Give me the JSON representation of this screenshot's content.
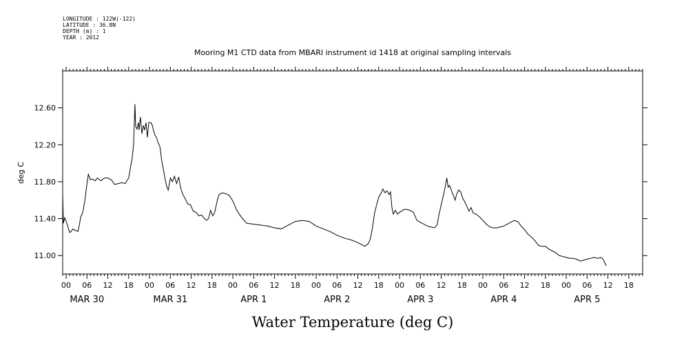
{
  "header": {
    "longitude": "LONGITUDE : 122W(-122)",
    "latitude": "LATITUDE : 36.8N",
    "depth": "DEPTH (m) : 1",
    "year": "YEAR : 2012",
    "title": "Mooring M1 CTD data from MBARI instrument id 1418 at original sampling intervals"
  },
  "chart_data": {
    "type": "line",
    "title": "Mooring M1 CTD data from MBARI instrument id 1418 at original sampling intervals",
    "xlabel": "Water Temperature (deg C)",
    "ylabel": "deg C",
    "ylim": [
      10.8,
      13.0
    ],
    "y_ticks": [
      "11.00",
      "11.40",
      "11.80",
      "12.20",
      "12.60"
    ],
    "x_unit": "hours since 2012-03-30 00:00",
    "xlim": [
      -1,
      166
    ],
    "x_hour_ticks": [
      "00",
      "06",
      "12",
      "18",
      "00",
      "06",
      "12",
      "18",
      "00",
      "06",
      "12",
      "18",
      "00",
      "06",
      "12",
      "18",
      "00",
      "06",
      "12",
      "18",
      "00",
      "06",
      "12",
      "18",
      "00",
      "06",
      "12",
      "18"
    ],
    "x_day_labels": [
      "MAR 30",
      "MAR 31",
      "APR  1",
      "APR  2",
      "APR  3",
      "APR  4",
      "APR  5"
    ],
    "grid": false,
    "series": [
      {
        "points": [
          [
            -1.0,
            11.67
          ],
          [
            -0.8,
            11.35
          ],
          [
            -0.4,
            11.41
          ],
          [
            0.2,
            11.35
          ],
          [
            0.6,
            11.3
          ],
          [
            1.0,
            11.25
          ],
          [
            1.4,
            11.26
          ],
          [
            2.0,
            11.29
          ],
          [
            2.6,
            11.27
          ],
          [
            3.0,
            11.27
          ],
          [
            3.4,
            11.26
          ],
          [
            3.8,
            11.33
          ],
          [
            4.2,
            11.42
          ],
          [
            4.8,
            11.47
          ],
          [
            5.4,
            11.6
          ],
          [
            6.0,
            11.78
          ],
          [
            6.4,
            11.88
          ],
          [
            7.0,
            11.82
          ],
          [
            7.6,
            11.83
          ],
          [
            8.4,
            11.81
          ],
          [
            9.0,
            11.84
          ],
          [
            10.0,
            11.81
          ],
          [
            11.0,
            11.84
          ],
          [
            12.0,
            11.84
          ],
          [
            13.0,
            11.82
          ],
          [
            14.0,
            11.77
          ],
          [
            15.0,
            11.78
          ],
          [
            16.0,
            11.79
          ],
          [
            17.0,
            11.78
          ],
          [
            18.0,
            11.84
          ],
          [
            18.6,
            11.97
          ],
          [
            19.0,
            12.05
          ],
          [
            19.4,
            12.2
          ],
          [
            19.8,
            12.64
          ],
          [
            20.0,
            12.4
          ],
          [
            20.4,
            12.37
          ],
          [
            20.8,
            12.44
          ],
          [
            21.0,
            12.36
          ],
          [
            21.4,
            12.5
          ],
          [
            21.8,
            12.32
          ],
          [
            22.2,
            12.41
          ],
          [
            22.6,
            12.36
          ],
          [
            23.0,
            12.44
          ],
          [
            23.4,
            12.28
          ],
          [
            23.8,
            12.44
          ],
          [
            24.4,
            12.44
          ],
          [
            24.8,
            12.41
          ],
          [
            25.2,
            12.35
          ],
          [
            25.6,
            12.3
          ],
          [
            26.0,
            12.28
          ],
          [
            26.5,
            12.22
          ],
          [
            27.0,
            12.18
          ],
          [
            27.5,
            12.03
          ],
          [
            28.0,
            11.93
          ],
          [
            28.5,
            11.83
          ],
          [
            29.0,
            11.74
          ],
          [
            29.4,
            11.71
          ],
          [
            30.0,
            11.84
          ],
          [
            30.6,
            11.8
          ],
          [
            31.2,
            11.86
          ],
          [
            31.8,
            11.78
          ],
          [
            32.4,
            11.85
          ],
          [
            33.0,
            11.73
          ],
          [
            33.6,
            11.66
          ],
          [
            34.2,
            11.62
          ],
          [
            35.0,
            11.56
          ],
          [
            35.8,
            11.55
          ],
          [
            36.6,
            11.48
          ],
          [
            37.4,
            11.47
          ],
          [
            38.2,
            11.43
          ],
          [
            39.0,
            11.44
          ],
          [
            39.6,
            11.41
          ],
          [
            40.4,
            11.38
          ],
          [
            41.0,
            11.4
          ],
          [
            41.6,
            11.49
          ],
          [
            42.2,
            11.43
          ],
          [
            42.8,
            11.47
          ],
          [
            43.4,
            11.58
          ],
          [
            44.0,
            11.66
          ],
          [
            45.0,
            11.68
          ],
          [
            46.0,
            11.67
          ],
          [
            47.0,
            11.65
          ],
          [
            48.0,
            11.59
          ],
          [
            49.0,
            11.5
          ],
          [
            50.0,
            11.44
          ],
          [
            51.0,
            11.39
          ],
          [
            52.0,
            11.35
          ],
          [
            54.0,
            11.34
          ],
          [
            56.0,
            11.33
          ],
          [
            58.0,
            11.32
          ],
          [
            60.0,
            11.3
          ],
          [
            62.0,
            11.29
          ],
          [
            64.0,
            11.33
          ],
          [
            66.0,
            11.37
          ],
          [
            68.0,
            11.38
          ],
          [
            70.0,
            11.37
          ],
          [
            72.0,
            11.32
          ],
          [
            74.0,
            11.29
          ],
          [
            76.0,
            11.26
          ],
          [
            78.0,
            11.22
          ],
          [
            80.0,
            11.19
          ],
          [
            82.0,
            11.17
          ],
          [
            84.0,
            11.14
          ],
          [
            85.0,
            11.12
          ],
          [
            86.0,
            11.1
          ],
          [
            87.0,
            11.13
          ],
          [
            87.6,
            11.18
          ],
          [
            88.2,
            11.3
          ],
          [
            88.8,
            11.46
          ],
          [
            89.4,
            11.55
          ],
          [
            90.0,
            11.63
          ],
          [
            90.6,
            11.67
          ],
          [
            91.2,
            11.72
          ],
          [
            91.8,
            11.68
          ],
          [
            92.4,
            11.7
          ],
          [
            93.0,
            11.66
          ],
          [
            93.4,
            11.69
          ],
          [
            93.8,
            11.52
          ],
          [
            94.2,
            11.45
          ],
          [
            94.8,
            11.49
          ],
          [
            95.4,
            11.45
          ],
          [
            96.0,
            11.47
          ],
          [
            96.6,
            11.48
          ],
          [
            97.2,
            11.5
          ],
          [
            98.0,
            11.5
          ],
          [
            99.0,
            11.49
          ],
          [
            100.0,
            11.47
          ],
          [
            101.0,
            11.38
          ],
          [
            102.0,
            11.36
          ],
          [
            103.0,
            11.34
          ],
          [
            104.0,
            11.32
          ],
          [
            105.0,
            11.31
          ],
          [
            106.0,
            11.3
          ],
          [
            106.8,
            11.33
          ],
          [
            107.4,
            11.45
          ],
          [
            108.0,
            11.55
          ],
          [
            108.6,
            11.65
          ],
          [
            109.2,
            11.75
          ],
          [
            109.6,
            11.84
          ],
          [
            110.0,
            11.74
          ],
          [
            110.4,
            11.76
          ],
          [
            111.0,
            11.7
          ],
          [
            111.6,
            11.64
          ],
          [
            112.0,
            11.6
          ],
          [
            112.4,
            11.66
          ],
          [
            113.0,
            11.71
          ],
          [
            113.6,
            11.69
          ],
          [
            114.2,
            11.62
          ],
          [
            114.8,
            11.58
          ],
          [
            115.4,
            11.53
          ],
          [
            116.0,
            11.48
          ],
          [
            116.6,
            11.52
          ],
          [
            117.2,
            11.46
          ],
          [
            118.0,
            11.45
          ],
          [
            119.0,
            11.42
          ],
          [
            120.0,
            11.38
          ],
          [
            121.0,
            11.34
          ],
          [
            122.0,
            11.31
          ],
          [
            123.0,
            11.3
          ],
          [
            124.0,
            11.3
          ],
          [
            125.0,
            11.31
          ],
          [
            126.0,
            11.32
          ],
          [
            127.0,
            11.34
          ],
          [
            128.0,
            11.36
          ],
          [
            129.0,
            11.38
          ],
          [
            130.0,
            11.37
          ],
          [
            131.0,
            11.32
          ],
          [
            132.0,
            11.28
          ],
          [
            133.0,
            11.23
          ],
          [
            134.0,
            11.2
          ],
          [
            135.0,
            11.16
          ],
          [
            136.0,
            11.11
          ],
          [
            137.0,
            11.1
          ],
          [
            138.0,
            11.1
          ],
          [
            139.0,
            11.07
          ],
          [
            140.0,
            11.05
          ],
          [
            141.0,
            11.03
          ],
          [
            142.0,
            11.0
          ],
          [
            143.0,
            10.99
          ],
          [
            144.0,
            10.98
          ],
          [
            145.0,
            10.97
          ],
          [
            146.0,
            10.97
          ],
          [
            147.0,
            10.96
          ],
          [
            148.0,
            10.94
          ],
          [
            149.0,
            10.95
          ],
          [
            150.0,
            10.96
          ],
          [
            151.0,
            10.97
          ],
          [
            152.0,
            10.98
          ],
          [
            153.0,
            10.97
          ],
          [
            154.0,
            10.98
          ],
          [
            154.6,
            10.96
          ],
          [
            155.0,
            10.93
          ],
          [
            155.5,
            10.89
          ]
        ]
      }
    ]
  }
}
